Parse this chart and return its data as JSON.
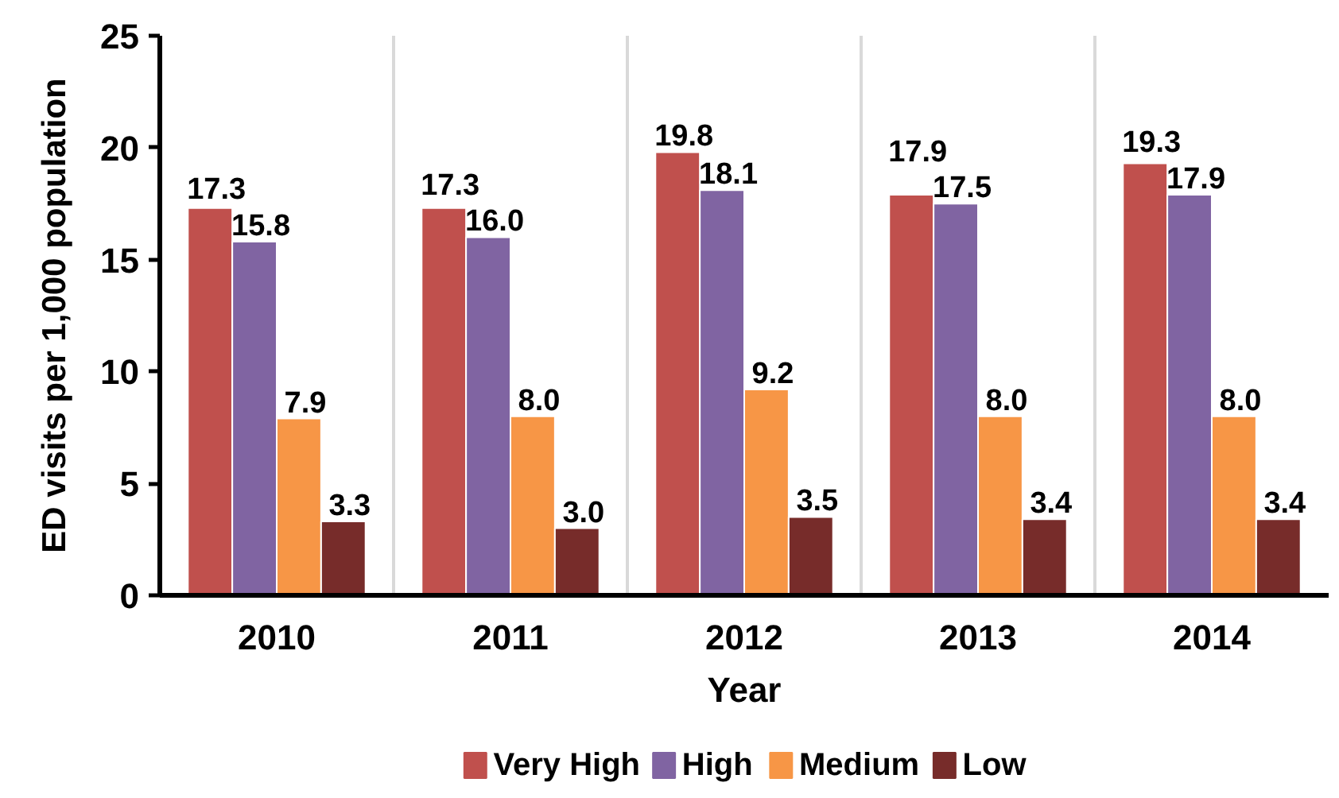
{
  "chart_data": {
    "type": "bar",
    "xlabel": "Year",
    "ylabel": "ED visits per 1,000 population",
    "categories": [
      "2010",
      "2011",
      "2012",
      "2013",
      "2014"
    ],
    "series": [
      {
        "name": "Very High",
        "color": "#c0504d",
        "values": [
          17.3,
          17.3,
          19.8,
          17.9,
          19.3
        ],
        "value_labels": [
          "17.3",
          "17.3",
          "19.8",
          "17.9",
          "19.3"
        ]
      },
      {
        "name": "High",
        "color": "#8064a2",
        "values": [
          15.8,
          16,
          18.1,
          17.5,
          17.9
        ],
        "value_labels": [
          "15.8",
          "16.0",
          "18.1",
          "17.5",
          "17.9"
        ]
      },
      {
        "name": "Medium",
        "color": "#f79646",
        "values": [
          7.9,
          8,
          9.2,
          8,
          8
        ],
        "value_labels": [
          "7.9",
          "8.0",
          "9.2",
          "8.0",
          "8.0"
        ]
      },
      {
        "name": "Low",
        "color": "#772c2a",
        "values": [
          3.3,
          3,
          3.5,
          3.4,
          3.4
        ],
        "value_labels": [
          "3.3",
          "3.0",
          "3.5",
          "3.4",
          "3.4"
        ]
      }
    ],
    "ylim": [
      0,
      25
    ],
    "yticks": [
      0,
      5,
      10,
      15,
      20,
      25
    ],
    "grid": "x",
    "legend": "bottom"
  }
}
